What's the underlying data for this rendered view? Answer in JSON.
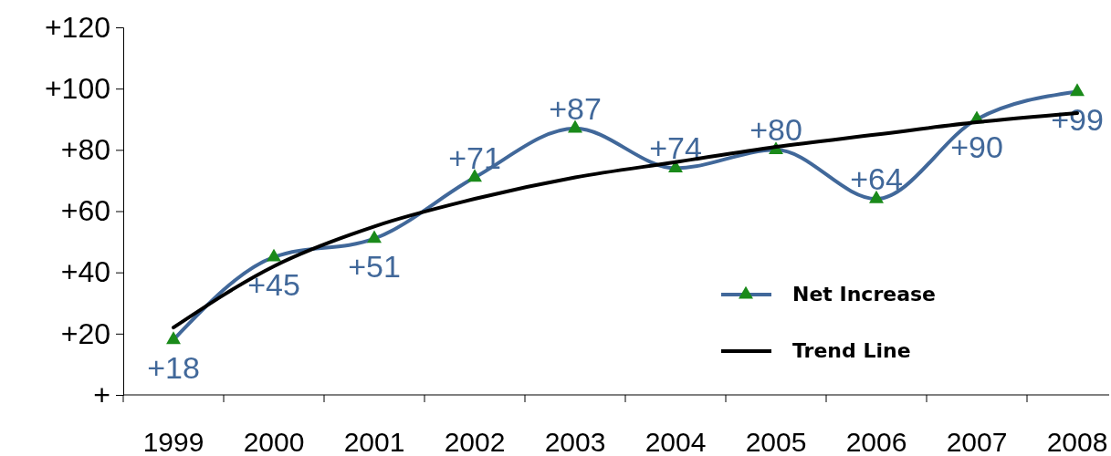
{
  "chart_data": {
    "type": "line",
    "categories": [
      "1999",
      "2000",
      "2001",
      "2002",
      "2003",
      "2004",
      "2005",
      "2006",
      "2007",
      "2008"
    ],
    "ylim": [
      0,
      120
    ],
    "yticks": [
      {
        "value": 0,
        "label": "+"
      },
      {
        "value": 20,
        "label": "+20"
      },
      {
        "value": 40,
        "label": "+40"
      },
      {
        "value": 60,
        "label": "+60"
      },
      {
        "value": 80,
        "label": "+80"
      },
      {
        "value": 100,
        "label": "+100"
      },
      {
        "value": 120,
        "label": "+120"
      }
    ],
    "grid": false,
    "legend": "bottom right",
    "marker": "triangle",
    "line_style": "solid",
    "series": [
      {
        "name": "Net Increase",
        "color": "#41689a",
        "colors": [
          "#1a8a1a",
          "#1a8a1a",
          "#1a8a1a",
          "#1a8a1a",
          "#1a8a1a",
          "#1a8a1a",
          "#1a8a1a",
          "#1a8a1a",
          "#1a8a1a",
          "#1a8a1a"
        ],
        "values": [
          18,
          45,
          51,
          71,
          87,
          74,
          80,
          64,
          90,
          99
        ],
        "value_labels": [
          "+18",
          "+45",
          "+51",
          "+71",
          "+87",
          "+74",
          "+80",
          "+64",
          "+90",
          "+99"
        ]
      },
      {
        "name": "Trend Line",
        "type": "line",
        "color": "#000000",
        "marker": "none",
        "values": [
          22,
          42,
          55,
          64,
          71,
          76,
          81,
          85,
          89,
          92
        ]
      }
    ]
  }
}
